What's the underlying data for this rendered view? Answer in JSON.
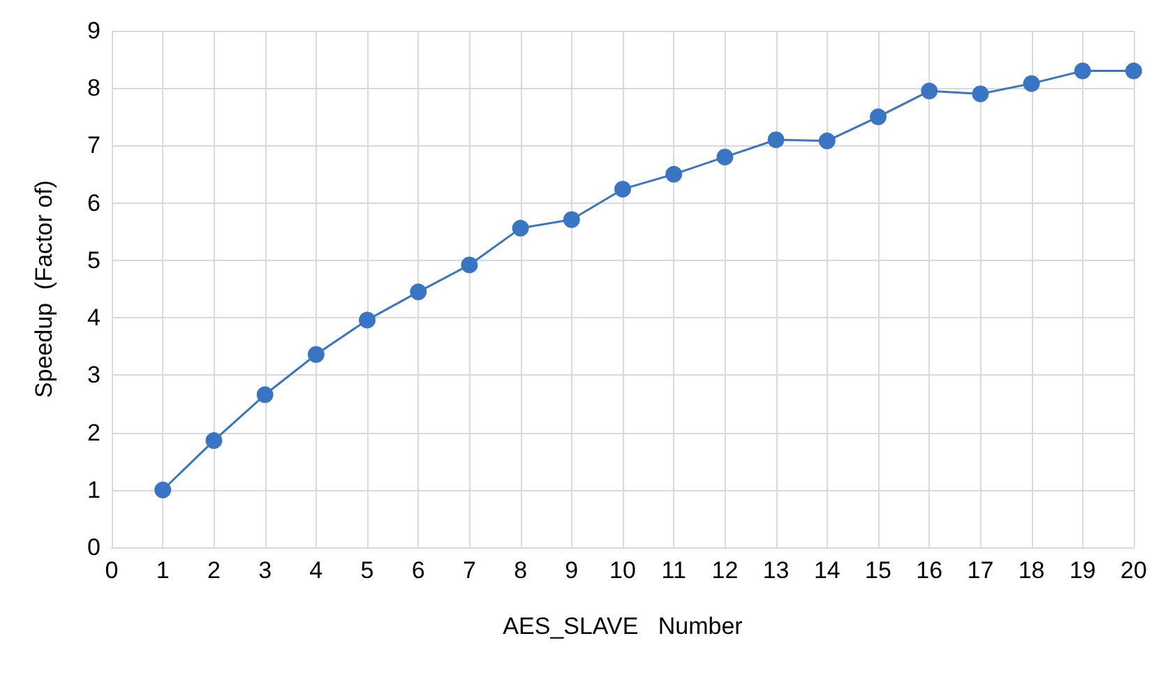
{
  "chart_data": {
    "type": "line",
    "xlabel": "AES_SLAVE   Number",
    "ylabel": "Speedup  (Factor of)",
    "x": [
      1,
      2,
      3,
      4,
      5,
      6,
      7,
      8,
      9,
      10,
      11,
      12,
      13,
      14,
      15,
      16,
      17,
      18,
      19,
      20
    ],
    "series": [
      {
        "color": "#3a75c4",
        "values": [
          1.0,
          1.86,
          2.66,
          3.36,
          3.96,
          4.45,
          4.92,
          5.56,
          5.71,
          6.24,
          6.5,
          6.8,
          7.1,
          7.08,
          7.5,
          7.95,
          7.9,
          8.08,
          8.3,
          8.3
        ]
      }
    ],
    "xlim": [
      0,
      20
    ],
    "xticks": [
      0,
      1,
      2,
      3,
      4,
      5,
      6,
      7,
      8,
      9,
      10,
      11,
      12,
      13,
      14,
      15,
      16,
      17,
      18,
      19,
      20
    ],
    "ylim": [
      0,
      9
    ],
    "yticks": [
      0,
      1,
      2,
      3,
      4,
      5,
      6,
      7,
      8,
      9
    ],
    "grid": true,
    "marker": "circle",
    "line_style": "solid"
  }
}
